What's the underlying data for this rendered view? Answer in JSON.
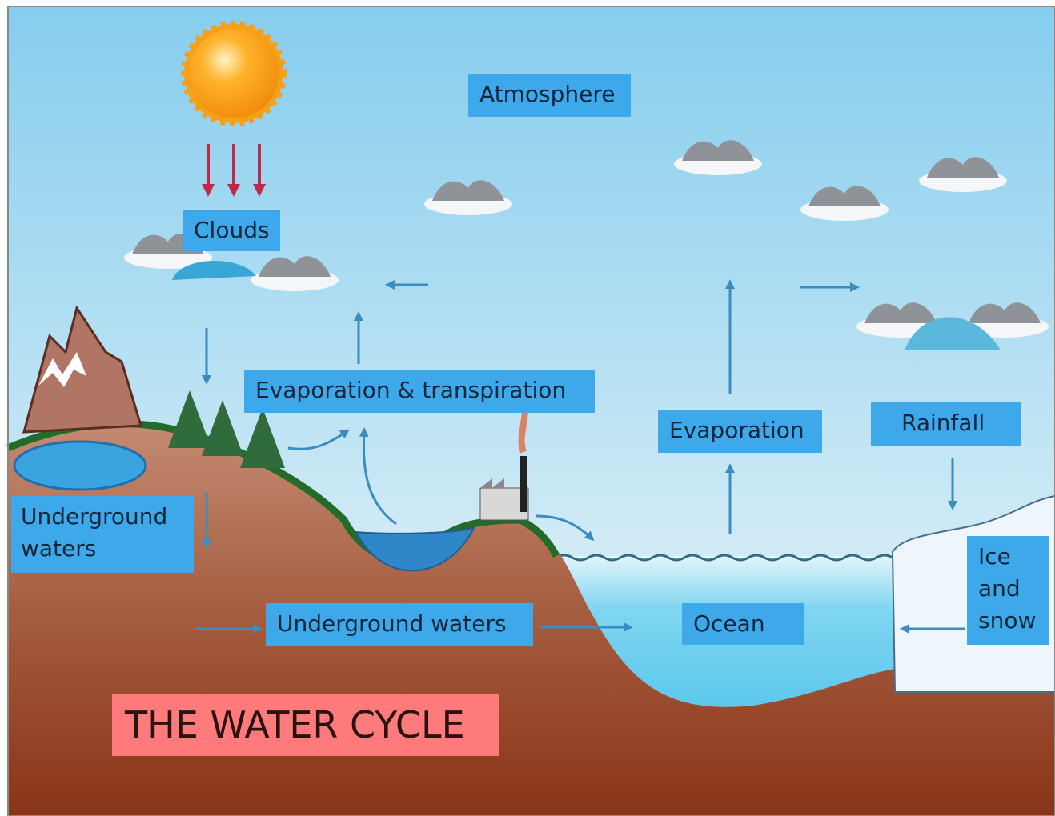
{
  "title": "THE WATER CYCLE",
  "labels": [
    "Atmosphere",
    "Clouds",
    "Evaporation & transpiration",
    "Evaporation",
    "Rainfall",
    "Underground waters",
    "Underground waters",
    "Ocean",
    "Ice and snow"
  ]
}
